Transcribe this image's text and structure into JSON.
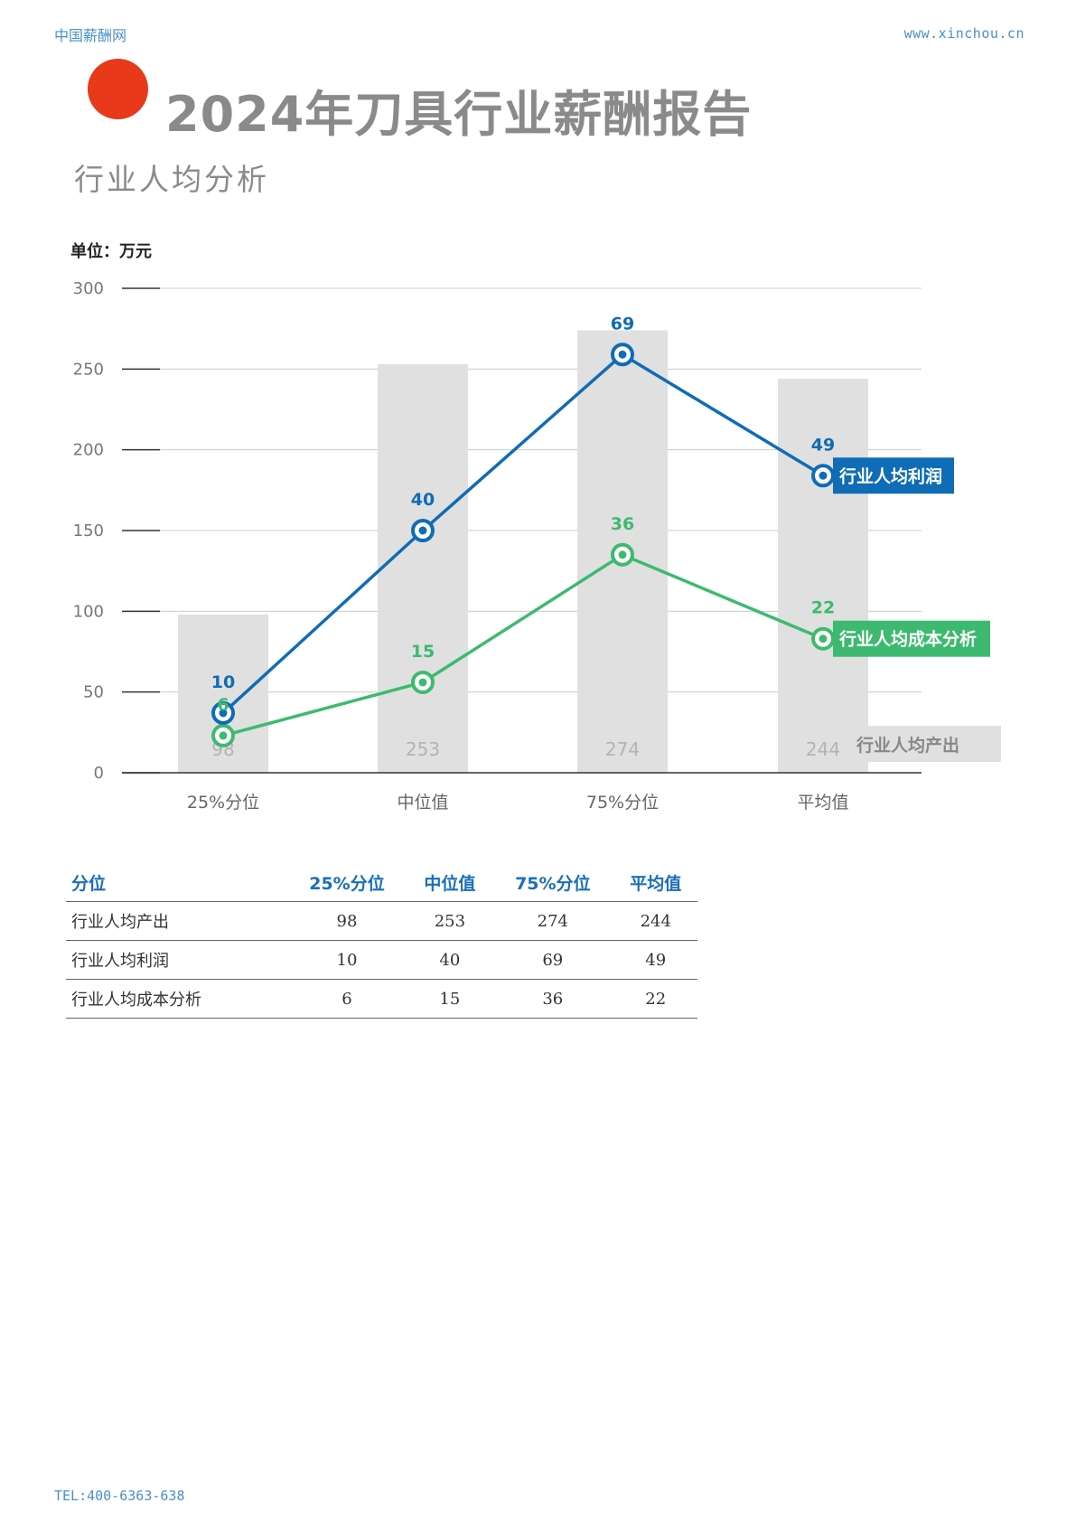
{
  "header": {
    "site_name": "中国薪酬网",
    "site_url": "www.xinchou.cn"
  },
  "page": {
    "title": "2024年刀具行业薪酬报告",
    "subtitle": "行业人均分析",
    "unit": "单位：万元"
  },
  "footer": {
    "tel": "TEL:400-6363-638"
  },
  "colors": {
    "profit": "#0f6cb6",
    "cost": "#3dba6f",
    "bar": "#e0e0e0",
    "bar_label": "#b3b3b3",
    "grid": "#cccccc"
  },
  "chart_data": {
    "type": "bar",
    "categories": [
      "25%分位",
      "中位值",
      "75%分位",
      "平均值"
    ],
    "ylim": [
      0,
      300
    ],
    "yticks": [
      0,
      50,
      100,
      150,
      200,
      250,
      300
    ],
    "grid": true,
    "bars": {
      "name": "行业人均产出",
      "values": [
        98,
        253,
        274,
        244
      ]
    },
    "lines": [
      {
        "name": "行业人均利润",
        "labels": [
          10,
          40,
          69,
          49
        ],
        "plot_y": [
          37,
          150,
          259,
          184
        ],
        "color": "#0f6cb6"
      },
      {
        "name": "行业人均成本分析",
        "labels": [
          6,
          15,
          36,
          22
        ],
        "plot_y": [
          23,
          56,
          135,
          83
        ],
        "color": "#3dba6f"
      }
    ]
  },
  "table": {
    "headers": [
      "分位",
      "25%分位",
      "中位值",
      "75%分位",
      "平均值"
    ],
    "rows": [
      {
        "label": "行业人均产出",
        "values": [
          "98",
          "253",
          "274",
          "244"
        ]
      },
      {
        "label": "行业人均利润",
        "values": [
          "10",
          "40",
          "69",
          "49"
        ]
      },
      {
        "label": "行业人均成本分析",
        "values": [
          "6",
          "15",
          "36",
          "22"
        ]
      }
    ]
  }
}
